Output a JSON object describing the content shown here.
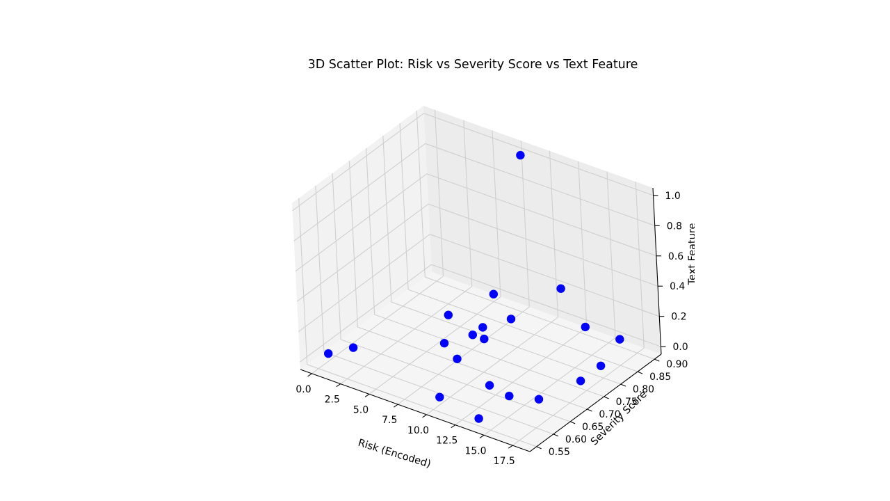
{
  "chart_data": {
    "type": "scatter",
    "projection": "3d",
    "title": "3D Scatter Plot: Risk vs Severity Score vs Text Feature",
    "xlabel": "Risk (Encoded)",
    "ylabel": "Severity Score",
    "zlabel": "Text Feature",
    "xlim": [
      -1,
      19
    ],
    "ylim": [
      0.53,
      0.92
    ],
    "zlim": [
      -0.05,
      1.05
    ],
    "x_ticks": [
      0.0,
      2.5,
      5.0,
      7.5,
      10.0,
      12.5,
      15.0,
      17.5
    ],
    "x_tick_labels": [
      "0.0",
      "2.5",
      "5.0",
      "7.5",
      "10.0",
      "12.5",
      "15.0",
      "17.5"
    ],
    "y_ticks": [
      0.55,
      0.6,
      0.65,
      0.7,
      0.75,
      0.8,
      0.85,
      0.9
    ],
    "y_tick_labels": [
      "0.55",
      "0.60",
      "0.65",
      "0.70",
      "0.75",
      "0.80",
      "0.85",
      "0.90"
    ],
    "z_ticks": [
      0.0,
      0.2,
      0.4,
      0.6,
      0.8,
      1.0
    ],
    "z_tick_labels": [
      "0.0",
      "0.2",
      "0.4",
      "0.6",
      "0.8",
      "1.0"
    ],
    "grid": true,
    "marker_color": "#0000ff",
    "series": [
      {
        "points": [
          {
            "x": 0,
            "y": 0.58,
            "z": 0.0
          },
          {
            "x": 1,
            "y": 0.62,
            "z": 0.0
          },
          {
            "x": 4,
            "y": 0.8,
            "z": 0.0
          },
          {
            "x": 5,
            "y": 0.9,
            "z": 0.0
          },
          {
            "x": 6,
            "y": 0.72,
            "z": 0.0
          },
          {
            "x": 7,
            "y": 0.8,
            "z": 0.0
          },
          {
            "x": 7,
            "y": 0.77,
            "z": 0.0
          },
          {
            "x": 8,
            "y": 0.69,
            "z": 0.0
          },
          {
            "x": 8,
            "y": 0.77,
            "z": 0.0
          },
          {
            "x": 8,
            "y": 0.85,
            "z": 0.0
          },
          {
            "x": 10,
            "y": 0.57,
            "z": 0.0
          },
          {
            "x": 12,
            "y": 0.65,
            "z": 0.0
          },
          {
            "x": 14,
            "y": 0.55,
            "z": 0.0
          },
          {
            "x": 17,
            "y": 0.81,
            "z": 0.0
          },
          {
            "x": 13,
            "y": 0.9,
            "z": 0.0
          },
          {
            "x": 16,
            "y": 0.9,
            "z": 0.0
          },
          {
            "x": 14,
            "y": 0.64,
            "z": 0.0
          },
          {
            "x": 16,
            "y": 0.66,
            "z": 0.0
          },
          {
            "x": 17,
            "y": 0.75,
            "z": 0.0
          },
          {
            "x": 11,
            "y": 0.9,
            "z": 0.2
          },
          {
            "x": 8,
            "y": 0.9,
            "z": 1.0
          }
        ]
      }
    ]
  }
}
